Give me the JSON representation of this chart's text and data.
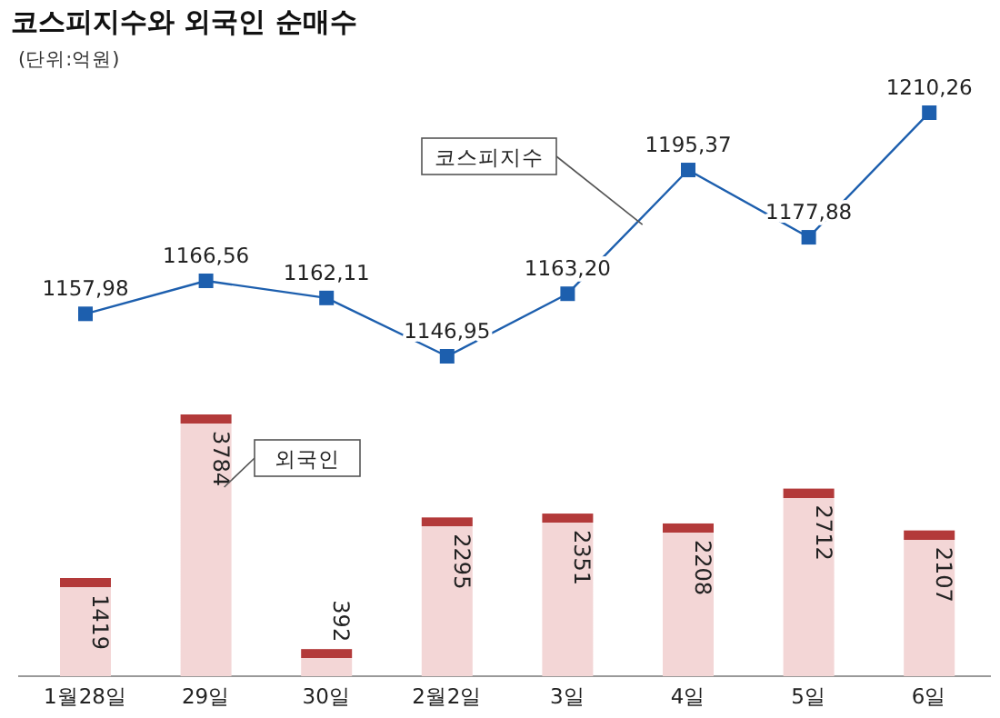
{
  "chart_data": [
    {
      "type": "line",
      "title": "코스피지수와 외국인 순매수",
      "subtitle": "(단위:억원)",
      "categories": [
        null,
        null,
        null,
        null,
        null,
        null,
        null,
        null
      ],
      "series": [
        {
          "name": "코스피지수",
          "color": "#1d5fae",
          "values": [
            1157.98,
            1166.56,
            1162.11,
            1146.95,
            1163.2,
            1195.37,
            1177.88,
            1210.26
          ],
          "value_labels": [
            "1157,98",
            "1166,56",
            "1162,11",
            "1146,95",
            "1163,20",
            "1195,37",
            "1177,88",
            "1210,26"
          ]
        }
      ],
      "marker": "square",
      "legend": false,
      "grid": false,
      "tick_labels": false
    },
    {
      "type": "bar",
      "categories": [
        "1월28일",
        "29일",
        "30일",
        "2월2일",
        "3일",
        "4일",
        "5일",
        "6일"
      ],
      "series": [
        {
          "name": "외국인",
          "color": "#f3d6d6",
          "values": [
            1419,
            3784,
            392,
            2295,
            2351,
            2208,
            2712,
            2107
          ]
        }
      ],
      "data_labels": true,
      "legend": false,
      "grid": false,
      "tick_labels": "x"
    }
  ]
}
